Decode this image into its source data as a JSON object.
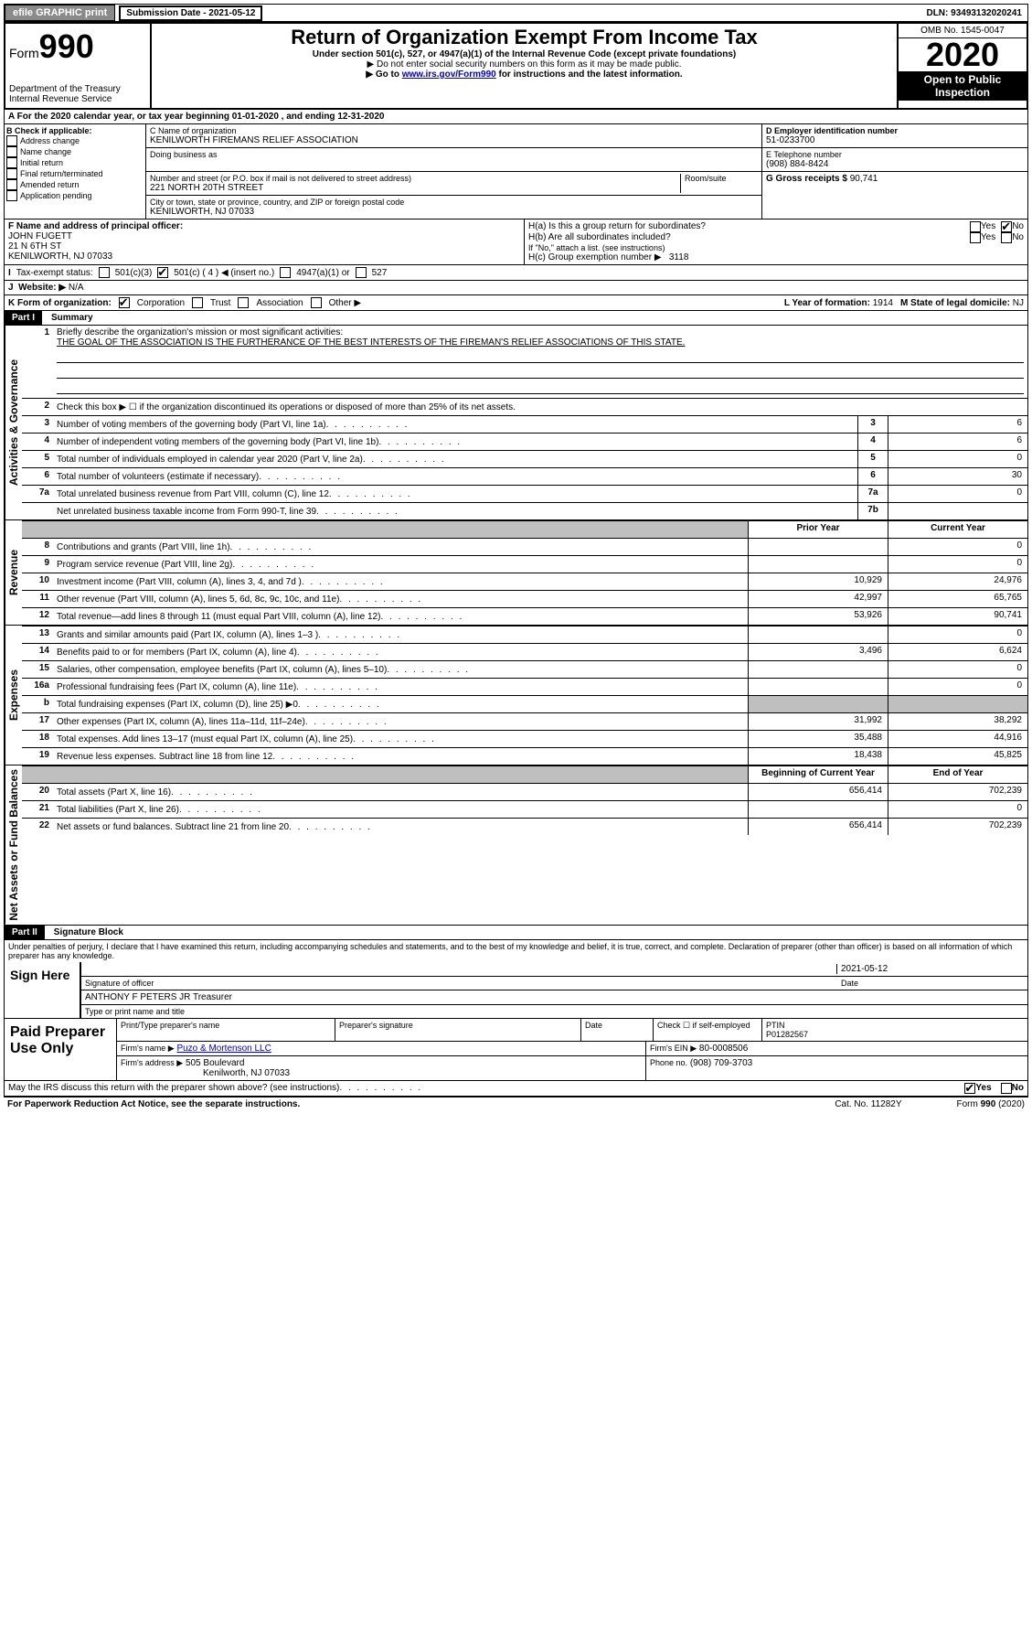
{
  "topbar": {
    "efile": "efile GRAPHIC print",
    "subdate_label": "Submission Date - 2021-05-12",
    "dln": "DLN: 93493132020241"
  },
  "header": {
    "form_label": "Form",
    "form_num": "990",
    "dept": "Department of the Treasury",
    "irs": "Internal Revenue Service",
    "title": "Return of Organization Exempt From Income Tax",
    "sub": "Under section 501(c), 527, or 4947(a)(1) of the Internal Revenue Code (except private foundations)",
    "note1": "▶ Do not enter social security numbers on this form as it may be made public.",
    "note2_a": "▶ Go to ",
    "note2_link": "www.irs.gov/Form990",
    "note2_b": " for instructions and the latest information.",
    "omb": "OMB No. 1545-0047",
    "year": "2020",
    "open": "Open to Public Inspection"
  },
  "rowA": "A For the 2020 calendar year, or tax year beginning 01-01-2020    , and ending 12-31-2020",
  "boxB": {
    "label": "B Check if applicable:",
    "items": [
      "Address change",
      "Name change",
      "Initial return",
      "Final return/terminated",
      "Amended return",
      "Application pending"
    ]
  },
  "boxC": {
    "name_label": "C Name of organization",
    "name": "KENILWORTH FIREMANS RELIEF ASSOCIATION",
    "dba_label": "Doing business as",
    "addr_label": "Number and street (or P.O. box if mail is not delivered to street address)",
    "room_label": "Room/suite",
    "addr": "221 NORTH 20TH STREET",
    "city_label": "City or town, state or province, country, and ZIP or foreign postal code",
    "city": "KENILWORTH, NJ  07033"
  },
  "boxD": {
    "label": "D Employer identification number",
    "val": "51-0233700"
  },
  "boxE": {
    "label": "E Telephone number",
    "val": "(908) 884-8424"
  },
  "boxG": {
    "label": "G Gross receipts $",
    "val": "90,741"
  },
  "boxF": {
    "label": "F  Name and address of principal officer:",
    "name": "JOHN FUGETT",
    "addr1": "21 N 6TH ST",
    "addr2": "KENILWORTH, NJ  07033"
  },
  "boxH": {
    "ha": "H(a)  Is this a group return for subordinates?",
    "hb": "H(b)  Are all subordinates included?",
    "hb_note": "If \"No,\" attach a list. (see instructions)",
    "hc": "H(c)  Group exemption number ▶",
    "hc_val": "3118",
    "yes": "Yes",
    "no": "No"
  },
  "rowI": {
    "label": "Tax-exempt status:",
    "o1": "501(c)(3)",
    "o2a": "501(c) ( 4 ) ◀ (insert no.)",
    "o3": "4947(a)(1) or",
    "o4": "527"
  },
  "rowJ": {
    "label": "Website: ▶",
    "val": "N/A"
  },
  "rowK": {
    "label": "K Form of organization:",
    "o1": "Corporation",
    "o2": "Trust",
    "o3": "Association",
    "o4": "Other ▶",
    "l_label": "L Year of formation:",
    "l_val": "1914",
    "m_label": "M State of legal domicile:",
    "m_val": "NJ"
  },
  "part1": {
    "header": "Part I",
    "title": "Summary",
    "l1": "Briefly describe the organization's mission or most significant activities:",
    "l1_text": "THE GOAL OF THE ASSOCIATION IS THE FURTHERANCE OF THE BEST INTERESTS OF THE FIREMAN'S RELIEF ASSOCIATIONS OF THIS STATE.",
    "l2": "Check this box ▶ ☐  if the organization discontinued its operations or disposed of more than 25% of its net assets.",
    "lines_ag": [
      {
        "n": "3",
        "d": "Number of voting members of the governing body (Part VI, line 1a)",
        "box": "3",
        "v": "6"
      },
      {
        "n": "4",
        "d": "Number of independent voting members of the governing body (Part VI, line 1b)",
        "box": "4",
        "v": "6"
      },
      {
        "n": "5",
        "d": "Total number of individuals employed in calendar year 2020 (Part V, line 2a)",
        "box": "5",
        "v": "0"
      },
      {
        "n": "6",
        "d": "Total number of volunteers (estimate if necessary)",
        "box": "6",
        "v": "30"
      },
      {
        "n": "7a",
        "d": "Total unrelated business revenue from Part VIII, column (C), line 12",
        "box": "7a",
        "v": "0"
      },
      {
        "n": "",
        "d": "Net unrelated business taxable income from Form 990-T, line 39",
        "box": "7b",
        "v": ""
      }
    ],
    "col_prior": "Prior Year",
    "col_current": "Current Year",
    "revenue": [
      {
        "n": "8",
        "d": "Contributions and grants (Part VIII, line 1h)",
        "p": "",
        "c": "0"
      },
      {
        "n": "9",
        "d": "Program service revenue (Part VIII, line 2g)",
        "p": "",
        "c": "0"
      },
      {
        "n": "10",
        "d": "Investment income (Part VIII, column (A), lines 3, 4, and 7d )",
        "p": "10,929",
        "c": "24,976"
      },
      {
        "n": "11",
        "d": "Other revenue (Part VIII, column (A), lines 5, 6d, 8c, 9c, 10c, and 11e)",
        "p": "42,997",
        "c": "65,765"
      },
      {
        "n": "12",
        "d": "Total revenue—add lines 8 through 11 (must equal Part VIII, column (A), line 12)",
        "p": "53,926",
        "c": "90,741"
      }
    ],
    "expenses": [
      {
        "n": "13",
        "d": "Grants and similar amounts paid (Part IX, column (A), lines 1–3 )",
        "p": "",
        "c": "0"
      },
      {
        "n": "14",
        "d": "Benefits paid to or for members (Part IX, column (A), line 4)",
        "p": "3,496",
        "c": "6,624"
      },
      {
        "n": "15",
        "d": "Salaries, other compensation, employee benefits (Part IX, column (A), lines 5–10)",
        "p": "",
        "c": "0"
      },
      {
        "n": "16a",
        "d": "Professional fundraising fees (Part IX, column (A), line 11e)",
        "p": "",
        "c": "0"
      },
      {
        "n": "b",
        "d": "Total fundraising expenses (Part IX, column (D), line 25) ▶0",
        "p": "shade",
        "c": "shade"
      },
      {
        "n": "17",
        "d": "Other expenses (Part IX, column (A), lines 11a–11d, 11f–24e)",
        "p": "31,992",
        "c": "38,292"
      },
      {
        "n": "18",
        "d": "Total expenses. Add lines 13–17 (must equal Part IX, column (A), line 25)",
        "p": "35,488",
        "c": "44,916"
      },
      {
        "n": "19",
        "d": "Revenue less expenses. Subtract line 18 from line 12",
        "p": "18,438",
        "c": "45,825"
      }
    ],
    "col_beg": "Beginning of Current Year",
    "col_end": "End of Year",
    "net": [
      {
        "n": "20",
        "d": "Total assets (Part X, line 16)",
        "p": "656,414",
        "c": "702,239"
      },
      {
        "n": "21",
        "d": "Total liabilities (Part X, line 26)",
        "p": "",
        "c": "0"
      },
      {
        "n": "22",
        "d": "Net assets or fund balances. Subtract line 21 from line 20",
        "p": "656,414",
        "c": "702,239"
      }
    ],
    "vlab_ag": "Activities & Governance",
    "vlab_rev": "Revenue",
    "vlab_exp": "Expenses",
    "vlab_net": "Net Assets or Fund Balances"
  },
  "part2": {
    "header": "Part II",
    "title": "Signature Block",
    "decl": "Under penalties of perjury, I declare that I have examined this return, including accompanying schedules and statements, and to the best of my knowledge and belief, it is true, correct, and complete. Declaration of preparer (other than officer) is based on all information of which preparer has any knowledge.",
    "sign_here": "Sign Here",
    "sig_officer": "Signature of officer",
    "date_label": "Date",
    "date_val": "2021-05-12",
    "officer_name": "ANTHONY F PETERS JR  Treasurer",
    "type_name": "Type or print name and title"
  },
  "paid": {
    "label": "Paid Preparer Use Only",
    "h1": "Print/Type preparer's name",
    "h2": "Preparer's signature",
    "h3": "Date",
    "h4a": "Check ☐ if self-employed",
    "h4b_label": "PTIN",
    "h4b": "P01282567",
    "firm_name_label": "Firm's name    ▶",
    "firm_name": "Puzo & Mortenson LLC",
    "firm_ein_label": "Firm's EIN ▶",
    "firm_ein": "80-0008506",
    "firm_addr_label": "Firm's address ▶",
    "firm_addr1": "505 Boulevard",
    "firm_addr2": "Kenilworth, NJ  07033",
    "phone_label": "Phone no.",
    "phone": "(908) 709-3703"
  },
  "discuss": {
    "q": "May the IRS discuss this return with the preparer shown above? (see instructions)",
    "yes": "Yes",
    "no": "No"
  },
  "footer": {
    "left": "For Paperwork Reduction Act Notice, see the separate instructions.",
    "mid": "Cat. No. 11282Y",
    "right": "Form 990 (2020)"
  }
}
